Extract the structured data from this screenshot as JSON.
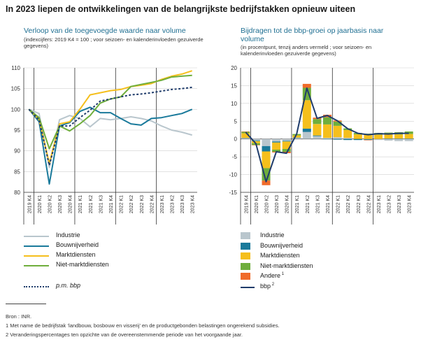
{
  "title": "In 2023 liepen de ontwikkelingen van de belangrijkste bedrijfstakken opnieuw uiteen",
  "colors": {
    "industrie": "#b9c6cd",
    "bouwnijverheid": "#1a7a9b",
    "marktdiensten": "#f5bf1c",
    "niet_marktdiensten": "#6fae3c",
    "andere": "#f06b2a",
    "bbp": "#1f3c6b"
  },
  "chart_data": [
    {
      "type": "line",
      "title": "Verloop van de toegevoegde waarde naar volume",
      "subtitle": "(indexcijfers: 2019 K4 = 100 ; voor seizoen- en kalenderinvloeden gezuiverde gegevens)",
      "x": [
        "2019 K4",
        "2020 K1",
        "2020 K2",
        "2020 K3",
        "2020 K4",
        "2021 K1",
        "2021 K2",
        "2021 K3",
        "2021 K4",
        "2022 K1",
        "2022 K2",
        "2022 K3",
        "2022 K4",
        "2023 K1",
        "2023 K2",
        "2023 K3",
        "2023 K4"
      ],
      "ylim": [
        80,
        110
      ],
      "yticks": [
        80,
        85,
        90,
        95,
        100,
        105,
        110
      ],
      "series": [
        {
          "name": "Industrie",
          "key": "industrie",
          "values": [
            100,
            99,
            86,
            97.5,
            98.5,
            97.8,
            95.8,
            97.8,
            97.5,
            97.8,
            98.2,
            97.8,
            97.2,
            96,
            95,
            94.5,
            93.8
          ]
        },
        {
          "name": "Bouwnijverheid",
          "key": "bouwnijverheid",
          "values": [
            100,
            97,
            82,
            96,
            96.8,
            99.5,
            100.5,
            99.2,
            99.2,
            97.8,
            96.5,
            96.2,
            97.8,
            98,
            98.5,
            99,
            100
          ]
        },
        {
          "name": "Marktdiensten",
          "key": "marktdiensten",
          "values": [
            100,
            97.5,
            87,
            96.5,
            97,
            100,
            103.5,
            104,
            104.5,
            104.8,
            105.5,
            105.8,
            106.2,
            107.2,
            108,
            108.5,
            109.3
          ]
        },
        {
          "name": "Niet-marktdiensten",
          "key": "niet_marktdiensten",
          "values": [
            100,
            98,
            90.5,
            96,
            94.8,
            96.5,
            98.5,
            101.5,
            102.5,
            103,
            105.5,
            106,
            106.5,
            107,
            107.8,
            108,
            108.2
          ]
        },
        {
          "name": "p.m. bbp",
          "key": "bbp",
          "dashed": true,
          "values": [
            100,
            97.5,
            86.5,
            96,
            96,
            98,
            99.8,
            102,
            102.5,
            103,
            103.5,
            103.7,
            104,
            104.4,
            104.8,
            105,
            105.3
          ]
        }
      ]
    },
    {
      "type": "bar",
      "stacked": true,
      "title": "Bijdragen tot de bbp-groei op jaarbasis naar volume",
      "subtitle": "(in procentpunt, tenzij anders vermeld ; voor seizoen- en kalenderinvloeden gezuiverde gegevens)",
      "categories": [
        "2019 K4",
        "2020 K1",
        "2020 K2",
        "2020 K3",
        "2020 K4",
        "2021 K1",
        "2021 K2",
        "2021 K3",
        "2021 K4",
        "2022 K1",
        "2022 K2",
        "2022 K3",
        "2022 K4",
        "2023 K1",
        "2023 K2",
        "2023 K3",
        "2023 K4"
      ],
      "ylim": [
        -15,
        20
      ],
      "yticks": [
        -15,
        -10,
        -5,
        0,
        5,
        10,
        15,
        20
      ],
      "series": [
        {
          "name": "Industrie",
          "key": "industrie",
          "values": [
            0.2,
            -0.4,
            -2.0,
            -0.7,
            -0.5,
            0.3,
            2.0,
            0.8,
            0.3,
            0.5,
            0.3,
            0.0,
            -0.1,
            -0.3,
            -0.5,
            -0.6,
            -0.6
          ]
        },
        {
          "name": "Bouwnijverheid",
          "key": "bouwnijverheid",
          "values": [
            0.1,
            -0.2,
            -1.5,
            -0.3,
            -0.2,
            0.1,
            0.9,
            0.2,
            -0.1,
            -0.2,
            -0.3,
            -0.3,
            -0.2,
            0.0,
            0.1,
            0.1,
            0.1
          ]
        },
        {
          "name": "Marktdiensten",
          "key": "marktdiensten",
          "values": [
            1.3,
            -0.6,
            -4.7,
            -2.0,
            -2.1,
            0.6,
            8.0,
            3.2,
            3.8,
            3.2,
            2.2,
            1.3,
            1.2,
            1.2,
            1.2,
            1.2,
            1.3
          ]
        },
        {
          "name": "Niet-marktdiensten",
          "key": "niet_marktdiensten",
          "values": [
            0.4,
            -0.5,
            -3.5,
            -0.6,
            -0.8,
            0.4,
            3.5,
            1.4,
            2.0,
            1.2,
            0.5,
            0.4,
            0.3,
            0.5,
            0.5,
            0.6,
            0.7
          ]
        },
        {
          "name": "Andere",
          "key": "andere",
          "values": [
            0.1,
            -0.1,
            -1.3,
            -0.2,
            -0.4,
            0.0,
            1.1,
            0.4,
            0.7,
            0.3,
            0.0,
            0.0,
            -0.1,
            0.0,
            0.0,
            0.0,
            0.0
          ]
        }
      ],
      "line": {
        "name": "bbp",
        "key": "bbp",
        "values": [
          1.9,
          -1.3,
          -12.0,
          -3.6,
          -4.0,
          1.4,
          14.3,
          5.8,
          6.6,
          5.1,
          2.9,
          1.6,
          1.2,
          1.5,
          1.4,
          1.6,
          1.6
        ]
      }
    }
  ],
  "legend_left": [
    {
      "label": "Industrie",
      "key": "industrie"
    },
    {
      "label": "Bouwnijverheid",
      "key": "bouwnijverheid"
    },
    {
      "label": "Marktdiensten",
      "key": "marktdiensten"
    },
    {
      "label": "Niet-marktdiensten",
      "key": "niet_marktdiensten"
    },
    {
      "label": "p.m. bbp",
      "key": "bbp"
    }
  ],
  "legend_right": [
    {
      "label": "Industrie",
      "key": "industrie",
      "sup": ""
    },
    {
      "label": "Bouwnijverheid",
      "key": "bouwnijverheid",
      "sup": ""
    },
    {
      "label": "Marktdiensten",
      "key": "marktdiensten",
      "sup": ""
    },
    {
      "label": "Niet-marktdiensten",
      "key": "niet_marktdiensten",
      "sup": ""
    },
    {
      "label": "Andere",
      "key": "andere",
      "sup": "1"
    },
    {
      "label": "bbp",
      "key": "bbp",
      "sup": "2"
    }
  ],
  "source": {
    "line1": "Bron : INR.",
    "note1": "1  Met name de bedrijfstak ‘landbouw, bosbouw en visserij’ en de productgebonden belastingen ongerekend subsidies.",
    "note2": "2  Veranderingspercentages ten opzichte van de overeenstemmende periode van het voorgaande jaar."
  }
}
